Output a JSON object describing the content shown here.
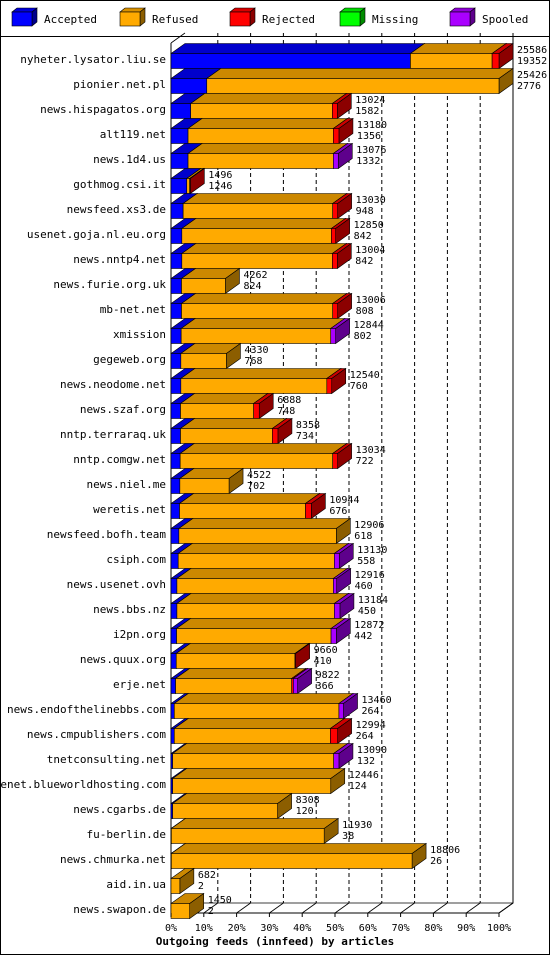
{
  "chart_data": {
    "type": "bar",
    "orientation": "horizontal",
    "stacked": true,
    "style": "3d",
    "title": "",
    "xlabel": "Outgoing feeds (innfeed) by articles",
    "ylabel": "",
    "xlim": [
      0,
      100
    ],
    "x_unit": "%",
    "x_ticks": [
      "0%",
      "10%",
      "20%",
      "30%",
      "40%",
      "50%",
      "60%",
      "70%",
      "80%",
      "90%",
      "100%"
    ],
    "grid": "vertical dashed",
    "legend_position": "top",
    "legend": [
      {
        "name": "Accepted",
        "color": "#0000ff"
      },
      {
        "name": "Refused",
        "color": "#ffaa00"
      },
      {
        "name": "Rejected",
        "color": "#ff0000"
      },
      {
        "name": "Missing",
        "color": "#00ff00"
      },
      {
        "name": "Spooled",
        "color": "#aa00ff"
      }
    ],
    "rows": [
      {
        "host": "nyheter.lysator.liu.se",
        "offered": "25586",
        "accepted": "19352",
        "pct": {
          "accepted": 73.0,
          "refused": 24.9,
          "rejected": 2.1,
          "missing": 0,
          "spooled": 0
        }
      },
      {
        "host": "pionier.net.pl",
        "offered": "25426",
        "accepted": "2776",
        "pct": {
          "accepted": 10.9,
          "refused": 89.1,
          "rejected": 0,
          "missing": 0,
          "spooled": 0
        }
      },
      {
        "host": "news.hispagatos.org",
        "offered": "13024",
        "accepted": "1582",
        "pct": {
          "accepted": 6.0,
          "refused": 43.2,
          "rejected": 1.5,
          "missing": 0,
          "spooled": 0
        }
      },
      {
        "host": "alt119.net",
        "offered": "13180",
        "accepted": "1356",
        "pct": {
          "accepted": 5.2,
          "refused": 44.3,
          "rejected": 1.7,
          "missing": 0,
          "spooled": 0
        }
      },
      {
        "host": "news.1d4.us",
        "offered": "13076",
        "accepted": "1332",
        "pct": {
          "accepted": 5.2,
          "refused": 44.3,
          "rejected": 0,
          "missing": 0,
          "spooled": 1.5
        }
      },
      {
        "host": "gothmog.csi.it",
        "offered": "1496",
        "accepted": "1246",
        "pct": {
          "accepted": 4.8,
          "refused": 0.9,
          "rejected": 0.2,
          "missing": 0,
          "spooled": 0
        }
      },
      {
        "host": "newsfeed.xs3.de",
        "offered": "13030",
        "accepted": "948",
        "pct": {
          "accepted": 3.7,
          "refused": 45.6,
          "rejected": 1.5,
          "missing": 0,
          "spooled": 0
        }
      },
      {
        "host": "usenet.goja.nl.eu.org",
        "offered": "12850",
        "accepted": "842",
        "pct": {
          "accepted": 3.3,
          "refused": 45.6,
          "rejected": 1.3,
          "missing": 0,
          "spooled": 0
        }
      },
      {
        "host": "news.nntp4.net",
        "offered": "13004",
        "accepted": "842",
        "pct": {
          "accepted": 3.3,
          "refused": 45.9,
          "rejected": 1.5,
          "missing": 0,
          "spooled": 0
        }
      },
      {
        "host": "news.furie.org.uk",
        "offered": "4262",
        "accepted": "824",
        "pct": {
          "accepted": 3.2,
          "refused": 13.4,
          "rejected": 0,
          "missing": 0,
          "spooled": 0
        }
      },
      {
        "host": "mb-net.net",
        "offered": "13006",
        "accepted": "808",
        "pct": {
          "accepted": 3.2,
          "refused": 46.1,
          "rejected": 1.5,
          "missing": 0,
          "spooled": 0
        }
      },
      {
        "host": "xmission",
        "offered": "12844",
        "accepted": "802",
        "pct": {
          "accepted": 3.1,
          "refused": 45.6,
          "rejected": 0,
          "missing": 0,
          "spooled": 1.5
        }
      },
      {
        "host": "gegeweb.org",
        "offered": "4330",
        "accepted": "768",
        "pct": {
          "accepted": 3.0,
          "refused": 13.9,
          "rejected": 0,
          "missing": 0,
          "spooled": 0
        }
      },
      {
        "host": "news.neodome.net",
        "offered": "12540",
        "accepted": "760",
        "pct": {
          "accepted": 3.0,
          "refused": 44.5,
          "rejected": 1.5,
          "missing": 0,
          "spooled": 0
        }
      },
      {
        "host": "news.szaf.org",
        "offered": "6888",
        "accepted": "748",
        "pct": {
          "accepted": 2.9,
          "refused": 22.3,
          "rejected": 1.7,
          "missing": 0,
          "spooled": 0
        }
      },
      {
        "host": "nntp.terraraq.uk",
        "offered": "8358",
        "accepted": "734",
        "pct": {
          "accepted": 2.9,
          "refused": 28.0,
          "rejected": 1.7,
          "missing": 0,
          "spooled": 0
        }
      },
      {
        "host": "nntp.comgw.net",
        "offered": "13034",
        "accepted": "722",
        "pct": {
          "accepted": 2.8,
          "refused": 46.5,
          "rejected": 1.5,
          "missing": 0,
          "spooled": 0
        }
      },
      {
        "host": "news.niel.me",
        "offered": "4522",
        "accepted": "702",
        "pct": {
          "accepted": 2.7,
          "refused": 15.0,
          "rejected": 0,
          "missing": 0,
          "spooled": 0
        }
      },
      {
        "host": "weretis.net",
        "offered": "10944",
        "accepted": "676",
        "pct": {
          "accepted": 2.6,
          "refused": 38.4,
          "rejected": 1.8,
          "missing": 0,
          "spooled": 0
        }
      },
      {
        "host": "newsfeed.bofh.team",
        "offered": "12906",
        "accepted": "618",
        "pct": {
          "accepted": 2.4,
          "refused": 48.0,
          "rejected": 0,
          "missing": 0,
          "spooled": 0
        }
      },
      {
        "host": "csiph.com",
        "offered": "13130",
        "accepted": "558",
        "pct": {
          "accepted": 2.2,
          "refused": 47.6,
          "rejected": 0,
          "missing": 0,
          "spooled": 1.5
        }
      },
      {
        "host": "news.usenet.ovh",
        "offered": "12916",
        "accepted": "460",
        "pct": {
          "accepted": 1.8,
          "refused": 47.7,
          "rejected": 0,
          "missing": 0,
          "spooled": 1.0
        }
      },
      {
        "host": "news.bbs.nz",
        "offered": "13184",
        "accepted": "450",
        "pct": {
          "accepted": 1.8,
          "refused": 48.0,
          "rejected": 0,
          "missing": 0,
          "spooled": 1.7
        }
      },
      {
        "host": "i2pn.org",
        "offered": "12872",
        "accepted": "442",
        "pct": {
          "accepted": 1.7,
          "refused": 47.1,
          "rejected": 0,
          "missing": 0,
          "spooled": 1.6
        }
      },
      {
        "host": "news.quux.org",
        "offered": "9660",
        "accepted": "410",
        "pct": {
          "accepted": 1.6,
          "refused": 36.2,
          "rejected": 0.2,
          "missing": 0,
          "spooled": 0
        }
      },
      {
        "host": "erje.net",
        "offered": "9822",
        "accepted": "366",
        "pct": {
          "accepted": 1.4,
          "refused": 35.4,
          "rejected": 0.5,
          "missing": 0,
          "spooled": 1.3
        }
      },
      {
        "host": "news.endofthelinebbs.com",
        "offered": "13460",
        "accepted": "264",
        "pct": {
          "accepted": 1.0,
          "refused": 50.2,
          "rejected": 0,
          "missing": 0,
          "spooled": 1.4
        }
      },
      {
        "host": "news.cmpublishers.com",
        "offered": "12994",
        "accepted": "264",
        "pct": {
          "accepted": 1.0,
          "refused": 47.6,
          "rejected": 2.2,
          "missing": 0,
          "spooled": 0
        }
      },
      {
        "host": "tnetconsulting.net",
        "offered": "13090",
        "accepted": "132",
        "pct": {
          "accepted": 0.5,
          "refused": 49.1,
          "rejected": 0,
          "missing": 0,
          "spooled": 1.6
        }
      },
      {
        "host": "usenet.blueworldhosting.com",
        "offered": "12446",
        "accepted": "124",
        "pct": {
          "accepted": 0.5,
          "refused": 48.2,
          "rejected": 0,
          "missing": 0,
          "spooled": 0
        }
      },
      {
        "host": "news.cgarbs.de",
        "offered": "8308",
        "accepted": "120",
        "pct": {
          "accepted": 0.5,
          "refused": 32.0,
          "rejected": 0,
          "missing": 0,
          "spooled": 0
        }
      },
      {
        "host": "fu-berlin.de",
        "offered": "11930",
        "accepted": "38",
        "pct": {
          "accepted": 0.1,
          "refused": 46.6,
          "rejected": 0,
          "missing": 0,
          "spooled": 0
        }
      },
      {
        "host": "news.chmurka.net",
        "offered": "18806",
        "accepted": "26",
        "pct": {
          "accepted": 0.1,
          "refused": 73.4,
          "rejected": 0,
          "missing": 0,
          "spooled": 0
        }
      },
      {
        "host": "aid.in.ua",
        "offered": "682",
        "accepted": "2",
        "pct": {
          "accepted": 0,
          "refused": 2.7,
          "rejected": 0,
          "missing": 0,
          "spooled": 0
        }
      },
      {
        "host": "news.swapon.de",
        "offered": "1450",
        "accepted": "2",
        "pct": {
          "accepted": 0,
          "refused": 5.7,
          "rejected": 0,
          "missing": 0,
          "spooled": 0
        }
      }
    ]
  }
}
